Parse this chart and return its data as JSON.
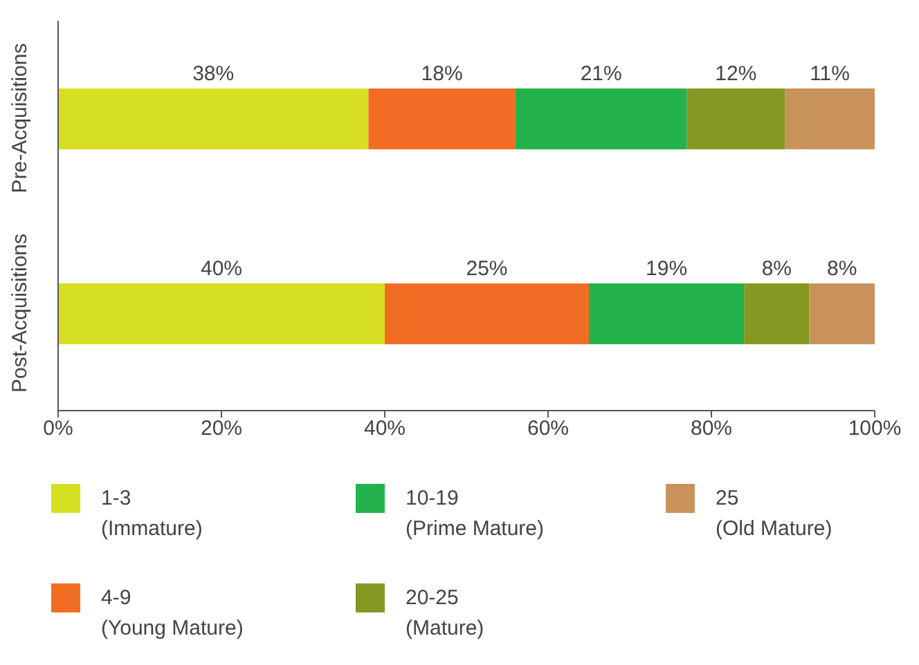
{
  "chart_data": {
    "type": "bar",
    "orientation": "horizontal",
    "stacked": true,
    "categories": [
      "Pre-Acquisitions",
      "Post-Acquisitions"
    ],
    "series": [
      {
        "name": "1-3\n(Immature)",
        "color": "#d7df23",
        "values": [
          38,
          40
        ],
        "value_labels": [
          "38%",
          "40%"
        ]
      },
      {
        "name": "4-9\n(Young Mature)",
        "color": "#f26d24",
        "values": [
          18,
          25
        ],
        "value_labels": [
          "18%",
          "25%"
        ]
      },
      {
        "name": "10-19\n(Prime Mature)",
        "color": "#23b24b",
        "values": [
          21,
          19
        ],
        "value_labels": [
          "21%",
          "19%"
        ]
      },
      {
        "name": "20-25\n(Mature)",
        "color": "#849822",
        "values": [
          12,
          8
        ],
        "value_labels": [
          "12%",
          "8%"
        ]
      },
      {
        "name": "25\n(Old Mature)",
        "color": "#c8935b",
        "values": [
          11,
          8
        ],
        "value_labels": [
          "11%",
          "8%"
        ]
      }
    ],
    "xlim": [
      0,
      100
    ],
    "xticks": [
      {
        "value": 0,
        "label": "0%"
      },
      {
        "value": 20,
        "label": "20%"
      },
      {
        "value": 40,
        "label": "40%"
      },
      {
        "value": 60,
        "label": "60%"
      },
      {
        "value": 80,
        "label": "80%"
      },
      {
        "value": 100,
        "label": "100%"
      }
    ],
    "grid": false,
    "legend": "bottom"
  }
}
